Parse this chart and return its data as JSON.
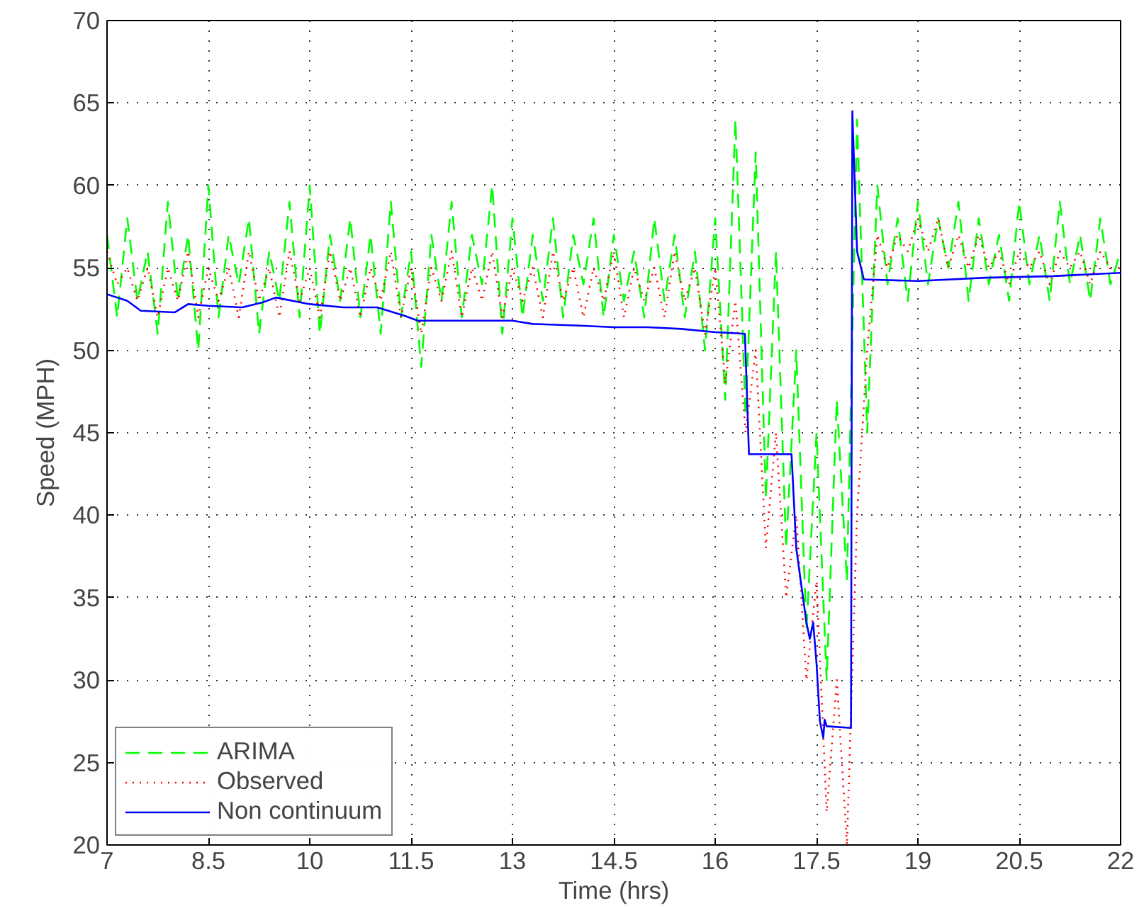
{
  "chart_data": {
    "type": "line",
    "xlabel": "Time (hrs)",
    "ylabel": "Speed (MPH)",
    "x": [
      7.0,
      7.15,
      7.3,
      7.45,
      7.6,
      7.75,
      7.9,
      8.05,
      8.2,
      8.35,
      8.5,
      8.65,
      8.8,
      8.95,
      9.1,
      9.25,
      9.4,
      9.55,
      9.7,
      9.85,
      10.0,
      10.15,
      10.3,
      10.45,
      10.6,
      10.75,
      10.9,
      11.05,
      11.2,
      11.35,
      11.5,
      11.65,
      11.8,
      11.95,
      12.1,
      12.25,
      12.4,
      12.55,
      12.7,
      12.85,
      13.0,
      13.15,
      13.3,
      13.45,
      13.6,
      13.75,
      13.9,
      14.05,
      14.2,
      14.35,
      14.5,
      14.65,
      14.8,
      14.95,
      15.1,
      15.25,
      15.4,
      15.55,
      15.7,
      15.85,
      16.0,
      16.15,
      16.3,
      16.45,
      16.6,
      16.75,
      16.9,
      17.05,
      17.2,
      17.35,
      17.5,
      17.65,
      17.8,
      17.95,
      18.1,
      18.25,
      18.4,
      18.55,
      18.7,
      18.85,
      19.0,
      19.15,
      19.3,
      19.45,
      19.6,
      19.75,
      19.9,
      20.05,
      20.2,
      20.35,
      20.5,
      20.65,
      20.8,
      20.95,
      21.1,
      21.25,
      21.4,
      21.55,
      21.7,
      21.85,
      22.0
    ],
    "series": [
      {
        "name": "ARIMA",
        "color": "#00ff00",
        "line_style": "dashed",
        "values": [
          57,
          52,
          58,
          53,
          56,
          51,
          59,
          53,
          57,
          50,
          60,
          52,
          57,
          54,
          58,
          51,
          56,
          53,
          59,
          52,
          60,
          51,
          57,
          53,
          58,
          52,
          57,
          51,
          59,
          52,
          56,
          49,
          57,
          53,
          59,
          52,
          57,
          54,
          60,
          51,
          58,
          52,
          57,
          53,
          58,
          52,
          57,
          54,
          58,
          52,
          57,
          53,
          56,
          52,
          58,
          53,
          57,
          52,
          56,
          50,
          58,
          47,
          64,
          46,
          62,
          41,
          56,
          38,
          50,
          33,
          45,
          30,
          47,
          36,
          64,
          45,
          60,
          54,
          58,
          53,
          59,
          54,
          58,
          55,
          59,
          53,
          58,
          54,
          57,
          53,
          59,
          54,
          57,
          53,
          59,
          54,
          57,
          53,
          58,
          54,
          56
        ]
      },
      {
        "name": "Observed",
        "color": "#ff0000",
        "line_style": "dotted",
        "values": [
          56,
          54,
          55,
          53,
          55,
          52,
          55,
          53,
          56,
          52,
          55,
          53,
          55,
          52,
          56,
          53,
          55,
          52,
          56,
          53,
          55,
          52,
          56,
          53,
          55,
          52,
          55,
          53,
          56,
          52,
          55,
          51,
          55,
          53,
          56,
          52,
          55,
          53,
          56,
          52,
          55,
          53,
          55,
          52,
          56,
          53,
          55,
          52,
          55,
          53,
          56,
          52,
          55,
          53,
          55,
          52,
          56,
          53,
          55,
          51,
          55,
          48,
          53,
          45,
          50,
          38,
          45,
          35,
          40,
          30,
          36,
          22,
          30,
          20,
          40,
          50,
          57,
          55,
          57,
          56,
          58,
          56,
          58,
          55,
          57,
          55,
          57,
          55,
          56,
          54,
          56,
          55,
          56,
          54,
          56,
          55,
          56,
          54,
          56,
          55,
          55
        ]
      },
      {
        "name": "Non continuum",
        "color": "#0000ff",
        "line_style": "solid",
        "x": [
          7.0,
          7.3,
          7.5,
          8.0,
          8.2,
          8.5,
          9.0,
          9.3,
          9.5,
          10.0,
          10.5,
          11.0,
          11.4,
          11.6,
          12.5,
          13.0,
          13.3,
          14.0,
          14.5,
          15.0,
          15.5,
          16.0,
          16.44,
          16.5,
          17.13,
          17.2,
          17.35,
          17.4,
          17.45,
          17.5,
          17.55,
          17.6,
          17.62,
          17.65,
          18.01,
          18.03,
          18.1,
          18.2,
          19.0,
          20.0,
          21.0,
          22.0
        ],
        "values": [
          53.4,
          53.0,
          52.4,
          52.3,
          52.8,
          52.7,
          52.6,
          52.9,
          53.2,
          52.8,
          52.6,
          52.6,
          52.1,
          51.8,
          51.8,
          51.8,
          51.6,
          51.5,
          51.4,
          51.4,
          51.3,
          51.1,
          51.0,
          43.7,
          43.7,
          38.0,
          33.5,
          32.5,
          33.5,
          31.0,
          27.5,
          26.5,
          27.6,
          27.2,
          27.1,
          64.5,
          56.0,
          54.3,
          54.2,
          54.4,
          54.5,
          54.7
        ]
      }
    ],
    "xlim": [
      7,
      22
    ],
    "xticks": [
      7,
      8.5,
      10,
      11.5,
      13,
      14.5,
      16,
      17.5,
      19,
      20.5,
      22
    ],
    "ylim": [
      20,
      70
    ],
    "yticks": [
      20,
      25,
      30,
      35,
      40,
      45,
      50,
      55,
      60,
      65,
      70
    ],
    "grid": true,
    "legend": "bottom left"
  }
}
